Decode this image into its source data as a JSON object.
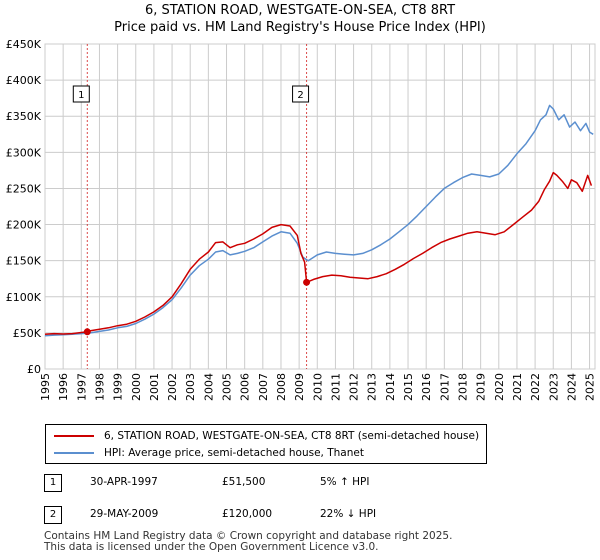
{
  "header": {
    "title_line1": "6, STATION ROAD, WESTGATE-ON-SEA, CT8 8RT",
    "title_line2": "Price paid vs. HM Land Registry's House Price Index (HPI)"
  },
  "chart_data": {
    "type": "line",
    "title": "6, STATION ROAD, WESTGATE-ON-SEA, CT8 8RT",
    "subtitle": "Price paid vs. HM Land Registry's House Price Index (HPI)",
    "xlabel": "",
    "ylabel": "",
    "xlim": [
      1995,
      2025.3
    ],
    "ylim": [
      0,
      450000
    ],
    "grid": true,
    "x_ticks": [
      "1995",
      "1996",
      "1997",
      "1998",
      "1999",
      "2000",
      "2001",
      "2002",
      "2003",
      "2004",
      "2005",
      "2006",
      "2007",
      "2008",
      "2009",
      "2010",
      "2011",
      "2012",
      "2013",
      "2014",
      "2015",
      "2016",
      "2017",
      "2018",
      "2019",
      "2020",
      "2021",
      "2022",
      "2023",
      "2024",
      "2025"
    ],
    "y_ticks": [
      {
        "value": 0,
        "label": "£0"
      },
      {
        "value": 50000,
        "label": "£50K"
      },
      {
        "value": 100000,
        "label": "£100K"
      },
      {
        "value": 150000,
        "label": "£150K"
      },
      {
        "value": 200000,
        "label": "£200K"
      },
      {
        "value": 250000,
        "label": "£250K"
      },
      {
        "value": 300000,
        "label": "£300K"
      },
      {
        "value": 350000,
        "label": "£350K"
      },
      {
        "value": 400000,
        "label": "£400K"
      },
      {
        "value": 450000,
        "label": "£450K"
      }
    ],
    "series": [
      {
        "name": "6, STATION ROAD, WESTGATE-ON-SEA, CT8 8RT (semi-detached house)",
        "color": "#cc0000",
        "x": [
          1995.0,
          1995.5,
          1996.0,
          1996.5,
          1997.0,
          1997.33,
          1997.5,
          1998.0,
          1998.5,
          1999.0,
          1999.5,
          2000.0,
          2000.5,
          2001.0,
          2001.5,
          2002.0,
          2002.5,
          2003.0,
          2003.5,
          2004.0,
          2004.4,
          2004.8,
          2005.2,
          2005.6,
          2006.0,
          2006.5,
          2007.0,
          2007.5,
          2008.0,
          2008.5,
          2008.9,
          2009.1,
          2009.3,
          2009.41,
          2009.41,
          2009.8,
          2010.3,
          2010.8,
          2011.3,
          2011.8,
          2012.3,
          2012.8,
          2013.3,
          2013.8,
          2014.3,
          2014.8,
          2015.3,
          2015.8,
          2016.3,
          2016.8,
          2017.3,
          2017.8,
          2018.3,
          2018.8,
          2019.3,
          2019.8,
          2020.3,
          2020.8,
          2021.3,
          2021.8,
          2022.2,
          2022.5,
          2022.8,
          2023.0,
          2023.2,
          2023.5,
          2023.8,
          2024.0,
          2024.3,
          2024.6,
          2024.9,
          2025.1
        ],
        "values": [
          48000,
          49000,
          48500,
          49000,
          50500,
          51500,
          53000,
          55000,
          57000,
          60000,
          62000,
          66000,
          72000,
          79000,
          88000,
          100000,
          118000,
          138000,
          152000,
          162000,
          175000,
          176000,
          168000,
          172000,
          174000,
          180000,
          187000,
          196000,
          200000,
          198000,
          185000,
          160000,
          148000,
          120000,
          120000,
          124000,
          128000,
          130000,
          129000,
          127000,
          126000,
          125000,
          128000,
          132000,
          138000,
          145000,
          153000,
          160000,
          168000,
          175000,
          180000,
          184000,
          188000,
          190000,
          188000,
          186000,
          190000,
          200000,
          210000,
          220000,
          232000,
          248000,
          260000,
          272000,
          268000,
          260000,
          250000,
          262000,
          258000,
          246000,
          268000,
          254000
        ]
      },
      {
        "name": "HPI: Average price, semi-detached house, Thanet",
        "color": "#5b8fcf",
        "x": [
          1995.0,
          1995.5,
          1996.0,
          1996.5,
          1997.0,
          1997.5,
          1998.0,
          1998.5,
          1999.0,
          1999.5,
          2000.0,
          2000.5,
          2001.0,
          2001.5,
          2002.0,
          2002.5,
          2003.0,
          2003.5,
          2004.0,
          2004.4,
          2004.8,
          2005.2,
          2005.6,
          2006.0,
          2006.5,
          2007.0,
          2007.5,
          2008.0,
          2008.5,
          2008.9,
          2009.2,
          2009.5,
          2010.0,
          2010.5,
          2011.0,
          2011.5,
          2012.0,
          2012.5,
          2013.0,
          2013.5,
          2014.0,
          2014.5,
          2015.0,
          2015.5,
          2016.0,
          2016.5,
          2017.0,
          2017.5,
          2018.0,
          2018.5,
          2019.0,
          2019.5,
          2020.0,
          2020.5,
          2021.0,
          2021.5,
          2022.0,
          2022.3,
          2022.6,
          2022.8,
          2023.0,
          2023.3,
          2023.6,
          2023.9,
          2024.2,
          2024.5,
          2024.8,
          2025.0,
          2025.2
        ],
        "values": [
          46000,
          47000,
          47500,
          48000,
          49000,
          50000,
          52000,
          54000,
          57000,
          59000,
          63000,
          69000,
          76000,
          85000,
          96000,
          112000,
          130000,
          143000,
          152000,
          162000,
          164000,
          158000,
          160000,
          163000,
          168000,
          176000,
          184000,
          190000,
          188000,
          174000,
          155000,
          150000,
          158000,
          162000,
          160000,
          159000,
          158000,
          160000,
          165000,
          172000,
          180000,
          190000,
          200000,
          212000,
          225000,
          238000,
          250000,
          258000,
          265000,
          270000,
          268000,
          266000,
          270000,
          282000,
          298000,
          312000,
          330000,
          345000,
          352000,
          365000,
          360000,
          345000,
          352000,
          335000,
          342000,
          330000,
          340000,
          328000,
          325000
        ]
      }
    ],
    "transactions": [
      {
        "id": "1",
        "x": 1997.33,
        "value": 51500
      },
      {
        "id": "2",
        "x": 2009.41,
        "value": 120000
      }
    ]
  },
  "legend": {
    "red_label": "6, STATION ROAD, WESTGATE-ON-SEA, CT8 8RT (semi-detached house)",
    "blue_label": "HPI: Average price, semi-detached house, Thanet"
  },
  "transactions_table": [
    {
      "badge": "1",
      "date": "30-APR-1997",
      "price": "£51,500",
      "hpi": "5% ↑ HPI"
    },
    {
      "badge": "2",
      "date": "29-MAY-2009",
      "price": "£120,000",
      "hpi": "22% ↓ HPI"
    }
  ],
  "footer": {
    "line1": "Contains HM Land Registry data © Crown copyright and database right 2025.",
    "line2": "This data is licensed under the Open Government Licence v3.0."
  }
}
